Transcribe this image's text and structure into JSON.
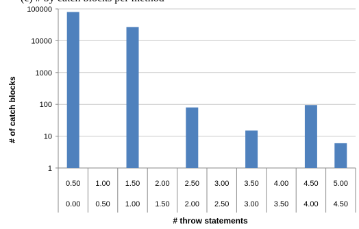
{
  "caption": "(c) # by catch blocks per method",
  "chart_data": {
    "type": "bar",
    "title": "",
    "xlabel": "# throw statements",
    "ylabel": "# of catch blocks",
    "yscale": "log",
    "ylim": [
      1,
      100000
    ],
    "y_ticks": [
      "1",
      "10",
      "100",
      "1000",
      "10000",
      "100000"
    ],
    "categories_upper": [
      "0.50",
      "1.00",
      "1.50",
      "2.00",
      "2.50",
      "3.00",
      "3.50",
      "4.00",
      "4.50",
      "5.00"
    ],
    "categories_lower": [
      "0.00",
      "0.50",
      "1.00",
      "1.50",
      "2.00",
      "2.50",
      "3.00",
      "3.50",
      "4.00",
      "4.50"
    ],
    "values": [
      80000,
      0,
      27000,
      0,
      80,
      0,
      15,
      0,
      95,
      6
    ],
    "bar_color": "#4F81BD",
    "grid": true,
    "legend": "none"
  }
}
